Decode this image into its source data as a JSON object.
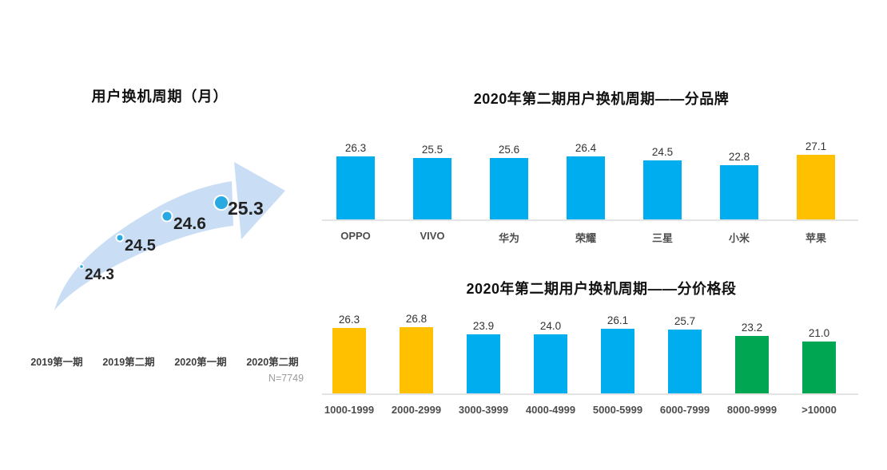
{
  "colors": {
    "bar_blue": "#00AEEF",
    "bar_orange": "#FFC000",
    "bar_green": "#00A651",
    "arrow_band": "#C9DEF5",
    "dot_blue": "#29A9E1",
    "baseline_gray": "#E4E4E4"
  },
  "chart_data": [
    {
      "type": "line",
      "title": "用户换机周期（月）",
      "categories": [
        "2019第一期",
        "2019第二期",
        "2020第一期",
        "2020第二期"
      ],
      "values": [
        24.3,
        24.5,
        24.6,
        25.3
      ],
      "labels": [
        "24.3",
        "24.5",
        "24.6",
        "25.3"
      ],
      "note": "N=7749",
      "style": "upward-arrow-trend, dots grow with value, no axes/grid"
    },
    {
      "type": "bar",
      "title": "2020年第二期用户换机周期——分品牌",
      "categories": [
        "OPPO",
        "VIVO",
        "华为",
        "荣耀",
        "三星",
        "小米",
        "苹果"
      ],
      "values": [
        26.3,
        25.5,
        25.6,
        26.4,
        24.5,
        22.8,
        27.1
      ],
      "value_labels": [
        "26.3",
        "25.5",
        "25.6",
        "26.4",
        "24.5",
        "22.8",
        "27.1"
      ],
      "bar_colors": [
        "#00AEEF",
        "#00AEEF",
        "#00AEEF",
        "#00AEEF",
        "#00AEEF",
        "#00AEEF",
        "#FFC000"
      ],
      "xlabel": "",
      "ylabel": "",
      "grid": false,
      "legend": "none",
      "data_labels": "above bars"
    },
    {
      "type": "bar",
      "title": "2020年第二期用户换机周期——分价格段",
      "categories": [
        "1000-1999",
        "2000-2999",
        "3000-3999",
        "4000-4999",
        "5000-5999",
        "6000-7999",
        "8000-9999",
        ">10000"
      ],
      "values": [
        26.3,
        26.8,
        23.9,
        24.0,
        26.1,
        25.7,
        23.2,
        21.0
      ],
      "value_labels": [
        "26.3",
        "26.8",
        "23.9",
        "24.0",
        "26.1",
        "25.7",
        "23.2",
        "21.0"
      ],
      "bar_colors": [
        "#FFC000",
        "#FFC000",
        "#00AEEF",
        "#00AEEF",
        "#00AEEF",
        "#00AEEF",
        "#00A651",
        "#00A651"
      ],
      "xlabel": "",
      "ylabel": "",
      "grid": false,
      "legend": "none",
      "data_labels": "above bars"
    }
  ]
}
